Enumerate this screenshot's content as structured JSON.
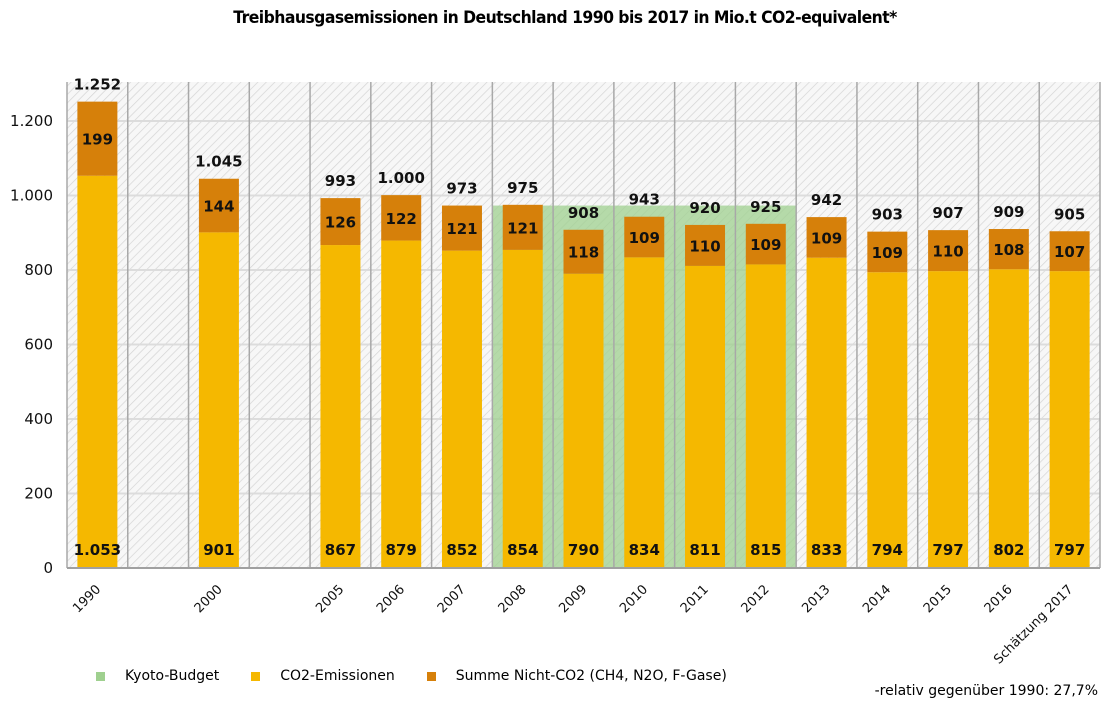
{
  "chart_data": {
    "type": "bar",
    "stacked": true,
    "title": "Treibhausgasemissionen in Deutschland 1990 bis 2017 in Mio.t CO2-equivalent*",
    "xlabel": "",
    "ylabel": "",
    "ylim": [
      0,
      1300
    ],
    "yticks": [
      0,
      200,
      400,
      600,
      800,
      1000,
      1200
    ],
    "ytick_labels": [
      "0",
      "200",
      "400",
      "600",
      "800",
      "1.000",
      "1.200"
    ],
    "grid": true,
    "categories": [
      "1990",
      "",
      "2000",
      "",
      "2005",
      "2006",
      "2007",
      "2008",
      "2009",
      "2010",
      "2011",
      "2012",
      "2013",
      "2014",
      "2015",
      "2016",
      "Schätzung 2017"
    ],
    "series": [
      {
        "name": "CO2-Emissionen",
        "color": "#f5b800",
        "values": [
          1053,
          null,
          901,
          null,
          867,
          879,
          852,
          854,
          790,
          834,
          811,
          815,
          833,
          794,
          797,
          802,
          797
        ],
        "labels": [
          "1.053",
          "",
          "901",
          "",
          "867",
          "879",
          "852",
          "854",
          "790",
          "834",
          "811",
          "815",
          "833",
          "794",
          "797",
          "802",
          "797"
        ]
      },
      {
        "name": "Summe Nicht-CO2 (CH4, N2O, F-Gase)",
        "color": "#d6800a",
        "values": [
          199,
          null,
          144,
          null,
          126,
          122,
          121,
          121,
          118,
          109,
          110,
          109,
          109,
          109,
          110,
          108,
          107
        ],
        "labels": [
          "199",
          "",
          "144",
          "",
          "126",
          "122",
          "121",
          "121",
          "118",
          "109",
          "110",
          "109",
          "109",
          "109",
          "110",
          "108",
          "107"
        ]
      }
    ],
    "totals": [
      1252,
      null,
      1045,
      null,
      993,
      1000,
      973,
      975,
      908,
      943,
      920,
      925,
      942,
      903,
      907,
      909,
      905
    ],
    "total_labels": [
      "1.252",
      "",
      "1.045",
      "",
      "993",
      "1.000",
      "973",
      "975",
      "908",
      "943",
      "920",
      "925",
      "942",
      "903",
      "907",
      "909",
      "905"
    ],
    "kyoto_budget": {
      "name": "Kyoto-Budget",
      "color": "#9fd08f",
      "value": 973,
      "from": "2008",
      "to": "2012"
    },
    "legend": {
      "placement": "bottom-left",
      "entries": [
        {
          "label": "Kyoto-Budget",
          "color": "#9fd08f"
        },
        {
          "label": "CO2-Emissionen",
          "color": "#f5b800"
        },
        {
          "label": "Summe Nicht-CO2 (CH4, N2O, F-Gase)",
          "color": "#d6800a"
        }
      ]
    },
    "footnote": "-relativ gegenüber 1990: 27,7%"
  }
}
